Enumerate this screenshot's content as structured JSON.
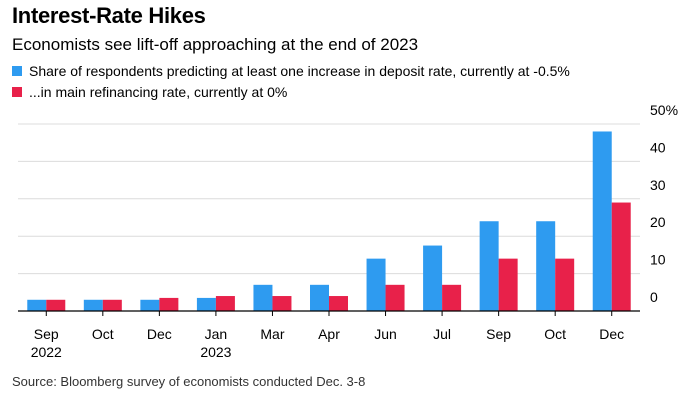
{
  "title": "Interest-Rate Hikes",
  "subtitle": "Economists see lift-off approaching at the end of 2023",
  "source": "Source: Bloomberg survey of economists conducted Dec. 3-8",
  "colors": {
    "deposit": "#2e9bf0",
    "refi": "#e8214a",
    "grid": "#dcdcdc",
    "axis": "#000000"
  },
  "chart_data": {
    "type": "bar",
    "categories": [
      [
        "Sep",
        "2022"
      ],
      [
        "Oct",
        ""
      ],
      [
        "Dec",
        ""
      ],
      [
        "Jan",
        "2023"
      ],
      [
        "Mar",
        ""
      ],
      [
        "Apr",
        ""
      ],
      [
        "Jun",
        ""
      ],
      [
        "Jul",
        ""
      ],
      [
        "Sep",
        ""
      ],
      [
        "Oct",
        ""
      ],
      [
        "Dec",
        ""
      ]
    ],
    "series": [
      {
        "name": "Share of respondents predicting at least one increase in deposit rate, currently at -0.5%",
        "color": "#2e9bf0",
        "values": [
          3,
          3,
          3,
          3.5,
          7,
          7,
          14,
          17.5,
          24,
          24,
          48
        ]
      },
      {
        "name": "...in main refinancing rate, currently at 0%",
        "color": "#e8214a",
        "values": [
          3,
          3,
          3.5,
          4,
          4,
          4,
          7,
          7,
          14,
          14,
          29
        ]
      }
    ],
    "yticks": [
      "0",
      "10",
      "20",
      "30",
      "40",
      "50%"
    ],
    "ylim": [
      0,
      50
    ],
    "grid": true,
    "legend": "top-left"
  }
}
